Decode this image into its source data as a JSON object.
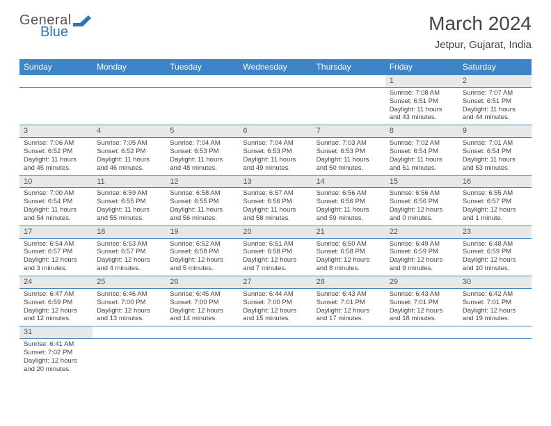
{
  "brand": {
    "word1": "General",
    "word2": "Blue",
    "logo_color": "#2e75b6",
    "text_color": "#555555"
  },
  "title": "March 2024",
  "location": "Jetpur, Gujarat, India",
  "colors": {
    "header_bg": "#3e84c6",
    "header_fg": "#ffffff",
    "daynum_bg": "#e8e8e8",
    "daynum_fg": "#555555",
    "border": "#3e84c6",
    "body_text": "#444444",
    "page_bg": "#ffffff"
  },
  "weekdays": [
    "Sunday",
    "Monday",
    "Tuesday",
    "Wednesday",
    "Thursday",
    "Friday",
    "Saturday"
  ],
  "weeks": [
    [
      null,
      null,
      null,
      null,
      null,
      {
        "n": "1",
        "sr": "Sunrise: 7:08 AM",
        "ss": "Sunset: 6:51 PM",
        "dl": "Daylight: 11 hours and 43 minutes."
      },
      {
        "n": "2",
        "sr": "Sunrise: 7:07 AM",
        "ss": "Sunset: 6:51 PM",
        "dl": "Daylight: 11 hours and 44 minutes."
      }
    ],
    [
      {
        "n": "3",
        "sr": "Sunrise: 7:06 AM",
        "ss": "Sunset: 6:52 PM",
        "dl": "Daylight: 11 hours and 45 minutes."
      },
      {
        "n": "4",
        "sr": "Sunrise: 7:05 AM",
        "ss": "Sunset: 6:52 PM",
        "dl": "Daylight: 11 hours and 46 minutes."
      },
      {
        "n": "5",
        "sr": "Sunrise: 7:04 AM",
        "ss": "Sunset: 6:53 PM",
        "dl": "Daylight: 11 hours and 48 minutes."
      },
      {
        "n": "6",
        "sr": "Sunrise: 7:04 AM",
        "ss": "Sunset: 6:53 PM",
        "dl": "Daylight: 11 hours and 49 minutes."
      },
      {
        "n": "7",
        "sr": "Sunrise: 7:03 AM",
        "ss": "Sunset: 6:53 PM",
        "dl": "Daylight: 11 hours and 50 minutes."
      },
      {
        "n": "8",
        "sr": "Sunrise: 7:02 AM",
        "ss": "Sunset: 6:54 PM",
        "dl": "Daylight: 11 hours and 51 minutes."
      },
      {
        "n": "9",
        "sr": "Sunrise: 7:01 AM",
        "ss": "Sunset: 6:54 PM",
        "dl": "Daylight: 11 hours and 53 minutes."
      }
    ],
    [
      {
        "n": "10",
        "sr": "Sunrise: 7:00 AM",
        "ss": "Sunset: 6:54 PM",
        "dl": "Daylight: 11 hours and 54 minutes."
      },
      {
        "n": "11",
        "sr": "Sunrise: 6:59 AM",
        "ss": "Sunset: 6:55 PM",
        "dl": "Daylight: 11 hours and 55 minutes."
      },
      {
        "n": "12",
        "sr": "Sunrise: 6:58 AM",
        "ss": "Sunset: 6:55 PM",
        "dl": "Daylight: 11 hours and 56 minutes."
      },
      {
        "n": "13",
        "sr": "Sunrise: 6:57 AM",
        "ss": "Sunset: 6:56 PM",
        "dl": "Daylight: 11 hours and 58 minutes."
      },
      {
        "n": "14",
        "sr": "Sunrise: 6:56 AM",
        "ss": "Sunset: 6:56 PM",
        "dl": "Daylight: 11 hours and 59 minutes."
      },
      {
        "n": "15",
        "sr": "Sunrise: 6:56 AM",
        "ss": "Sunset: 6:56 PM",
        "dl": "Daylight: 12 hours and 0 minutes."
      },
      {
        "n": "16",
        "sr": "Sunrise: 6:55 AM",
        "ss": "Sunset: 6:57 PM",
        "dl": "Daylight: 12 hours and 1 minute."
      }
    ],
    [
      {
        "n": "17",
        "sr": "Sunrise: 6:54 AM",
        "ss": "Sunset: 6:57 PM",
        "dl": "Daylight: 12 hours and 3 minutes."
      },
      {
        "n": "18",
        "sr": "Sunrise: 6:53 AM",
        "ss": "Sunset: 6:57 PM",
        "dl": "Daylight: 12 hours and 4 minutes."
      },
      {
        "n": "19",
        "sr": "Sunrise: 6:52 AM",
        "ss": "Sunset: 6:58 PM",
        "dl": "Daylight: 12 hours and 5 minutes."
      },
      {
        "n": "20",
        "sr": "Sunrise: 6:51 AM",
        "ss": "Sunset: 6:58 PM",
        "dl": "Daylight: 12 hours and 7 minutes."
      },
      {
        "n": "21",
        "sr": "Sunrise: 6:50 AM",
        "ss": "Sunset: 6:58 PM",
        "dl": "Daylight: 12 hours and 8 minutes."
      },
      {
        "n": "22",
        "sr": "Sunrise: 6:49 AM",
        "ss": "Sunset: 6:59 PM",
        "dl": "Daylight: 12 hours and 9 minutes."
      },
      {
        "n": "23",
        "sr": "Sunrise: 6:48 AM",
        "ss": "Sunset: 6:59 PM",
        "dl": "Daylight: 12 hours and 10 minutes."
      }
    ],
    [
      {
        "n": "24",
        "sr": "Sunrise: 6:47 AM",
        "ss": "Sunset: 6:59 PM",
        "dl": "Daylight: 12 hours and 12 minutes."
      },
      {
        "n": "25",
        "sr": "Sunrise: 6:46 AM",
        "ss": "Sunset: 7:00 PM",
        "dl": "Daylight: 12 hours and 13 minutes."
      },
      {
        "n": "26",
        "sr": "Sunrise: 6:45 AM",
        "ss": "Sunset: 7:00 PM",
        "dl": "Daylight: 12 hours and 14 minutes."
      },
      {
        "n": "27",
        "sr": "Sunrise: 6:44 AM",
        "ss": "Sunset: 7:00 PM",
        "dl": "Daylight: 12 hours and 15 minutes."
      },
      {
        "n": "28",
        "sr": "Sunrise: 6:43 AM",
        "ss": "Sunset: 7:01 PM",
        "dl": "Daylight: 12 hours and 17 minutes."
      },
      {
        "n": "29",
        "sr": "Sunrise: 6:43 AM",
        "ss": "Sunset: 7:01 PM",
        "dl": "Daylight: 12 hours and 18 minutes."
      },
      {
        "n": "30",
        "sr": "Sunrise: 6:42 AM",
        "ss": "Sunset: 7:01 PM",
        "dl": "Daylight: 12 hours and 19 minutes."
      }
    ],
    [
      {
        "n": "31",
        "sr": "Sunrise: 6:41 AM",
        "ss": "Sunset: 7:02 PM",
        "dl": "Daylight: 12 hours and 20 minutes."
      },
      null,
      null,
      null,
      null,
      null,
      null
    ]
  ]
}
